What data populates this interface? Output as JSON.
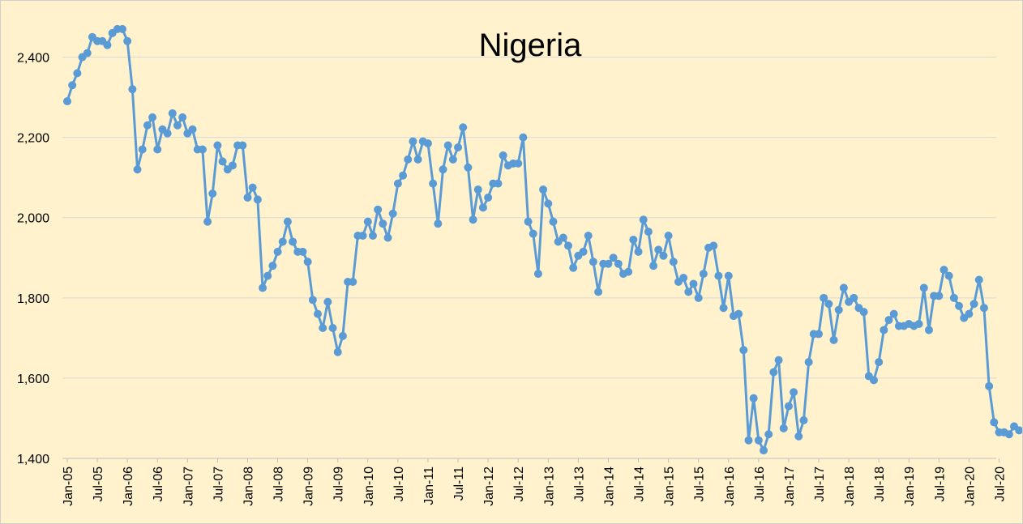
{
  "chart_data": {
    "type": "line",
    "title": "Nigeria",
    "xlabel": "",
    "ylabel": "",
    "ylim": [
      1400,
      2500
    ],
    "yticks": [
      1400,
      1600,
      1800,
      2000,
      2200,
      2400
    ],
    "ytick_labels": [
      "1,400",
      "1,600",
      "1,800",
      "2,000",
      "2,200",
      "2,400"
    ],
    "xtick_labels": [
      "Jan-05",
      "Jul-05",
      "Jan-06",
      "Jul-06",
      "Jan-07",
      "Jul-07",
      "Jan-08",
      "Jul-08",
      "Jan-09",
      "Jul-09",
      "Jan-10",
      "Jul-10",
      "Jan-11",
      "Jul-11",
      "Jan-12",
      "Jul-12",
      "Jan-13",
      "Jul-13",
      "Jan-14",
      "Jul-14",
      "Jan-15",
      "Jul-15",
      "Jan-16",
      "Jul-16",
      "Jan-17",
      "Jul-17",
      "Jan-18",
      "Jul-18",
      "Jan-19",
      "Jul-19",
      "Jan-20",
      "Jul-20"
    ],
    "grid": true,
    "legend": "none",
    "start_month": "Jan-05",
    "color": "#5b9bd5",
    "series": [
      {
        "values": [
          2290,
          2330,
          2360,
          2400,
          2410,
          2450,
          2440,
          2440,
          2430,
          2460,
          2470,
          2470,
          2440,
          2320,
          2120,
          2170,
          2230,
          2250,
          2170,
          2220,
          2210,
          2260,
          2230,
          2250,
          2210,
          2220,
          2170,
          2170,
          1990,
          2060,
          2180,
          2140,
          2120,
          2130,
          2180,
          2180,
          2050,
          2075,
          2045,
          1825,
          1855,
          1880,
          1915,
          1940,
          1990,
          1940,
          1915,
          1915,
          1890,
          1795,
          1760,
          1725,
          1790,
          1725,
          1665,
          1705,
          1840,
          1840,
          1955,
          1955,
          1990,
          1955,
          2020,
          1985,
          1950,
          2010,
          2085,
          2105,
          2145,
          2190,
          2145,
          2190,
          2185,
          2085,
          1985,
          2120,
          2180,
          2145,
          2175,
          2225,
          2125,
          1995,
          2070,
          2025,
          2050,
          2085,
          2085,
          2155,
          2130,
          2135,
          2135,
          2200,
          1990,
          1960,
          1860,
          2070,
          2035,
          1990,
          1940,
          1950,
          1930,
          1875,
          1905,
          1915,
          1955,
          1890,
          1815,
          1885,
          1885,
          1900,
          1885,
          1860,
          1865,
          1945,
          1915,
          1995,
          1965,
          1880,
          1920,
          1905,
          1955,
          1890,
          1840,
          1850,
          1815,
          1835,
          1800,
          1860,
          1925,
          1930,
          1855,
          1775,
          1855,
          1755,
          1760,
          1670,
          1445,
          1550,
          1445,
          1420,
          1460,
          1615,
          1645,
          1475,
          1530,
          1565,
          1455,
          1495,
          1640,
          1710,
          1710,
          1800,
          1785,
          1695,
          1770,
          1825,
          1790,
          1800,
          1775,
          1765,
          1605,
          1595,
          1640,
          1720,
          1745,
          1760,
          1730,
          1730,
          1735,
          1730,
          1735,
          1825,
          1720,
          1805,
          1805,
          1870,
          1855,
          1800,
          1780,
          1750,
          1760,
          1785,
          1845,
          1775,
          1580,
          1490,
          1465,
          1465,
          1460,
          1480,
          1470
        ]
      }
    ]
  }
}
